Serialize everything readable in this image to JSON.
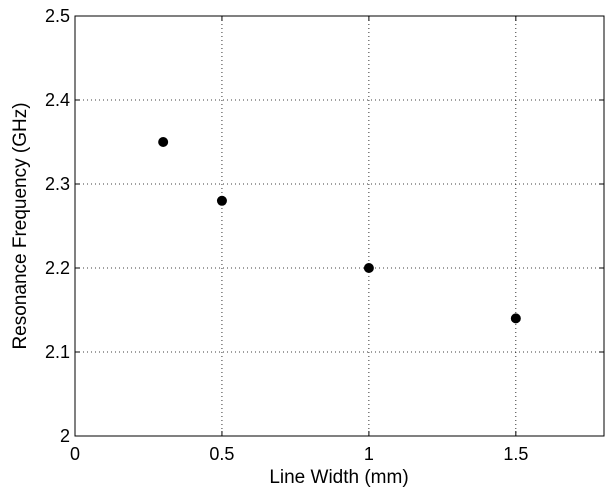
{
  "chart_data": {
    "type": "scatter",
    "xlabel": "Line Width (mm)",
    "ylabel": "Resonance Frequency (GHz)",
    "xlim": [
      0,
      1.8
    ],
    "ylim": [
      2.0,
      2.5
    ],
    "grid": true,
    "x_ticks": [
      0,
      0.5,
      1,
      1.5
    ],
    "x_tick_labels": [
      "0",
      "0.5",
      "1",
      "1.5"
    ],
    "y_ticks": [
      2.0,
      2.1,
      2.2,
      2.3,
      2.4,
      2.5
    ],
    "y_tick_labels": [
      "2",
      "2.1",
      "2.2",
      "2.3",
      "2.4",
      "2.5"
    ],
    "series": [
      {
        "x": [
          0.3,
          0.5,
          1.0,
          1.5
        ],
        "y": [
          2.35,
          2.28,
          2.2,
          2.14
        ],
        "color": "#000000"
      }
    ]
  }
}
